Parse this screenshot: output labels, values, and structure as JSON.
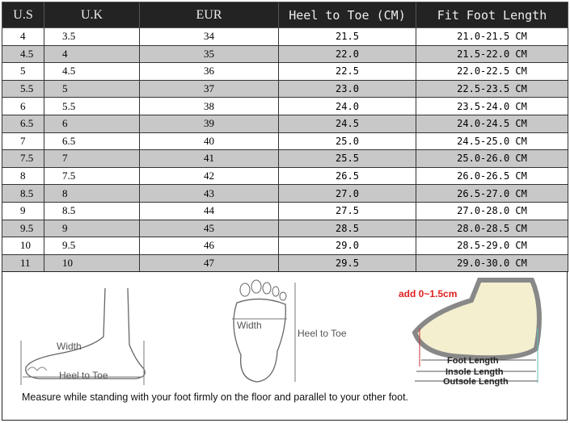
{
  "table": {
    "headers": [
      "U.S",
      "U.K",
      "EUR",
      "Heel to Toe (CM)",
      "Fit Foot Length"
    ],
    "rows": [
      [
        "4",
        "3.5",
        "34",
        "21.5",
        "21.0-21.5 CM"
      ],
      [
        "4.5",
        "4",
        "35",
        "22.0",
        "21.5-22.0 CM"
      ],
      [
        "5",
        "4.5",
        "36",
        "22.5",
        "22.0-22.5 CM"
      ],
      [
        "5.5",
        "5",
        "37",
        "23.0",
        "22.5-23.5 CM"
      ],
      [
        "6",
        "5.5",
        "38",
        "24.0",
        "23.5-24.0 CM"
      ],
      [
        "6.5",
        "6",
        "39",
        "24.5",
        "24.0-24.5 CM"
      ],
      [
        "7",
        "6.5",
        "40",
        "25.0",
        "24.5-25.0 CM"
      ],
      [
        "7.5",
        "7",
        "41",
        "25.5",
        "25.0-26.0 CM"
      ],
      [
        "8",
        "7.5",
        "42",
        "26.5",
        "26.0-26.5 CM"
      ],
      [
        "8.5",
        "8",
        "43",
        "27.0",
        "26.5-27.0 CM"
      ],
      [
        "9",
        "8.5",
        "44",
        "27.5",
        "27.0-28.0 CM"
      ],
      [
        "9.5",
        "9",
        "45",
        "28.5",
        "28.0-28.5 CM"
      ],
      [
        "10",
        "9.5",
        "46",
        "29.0",
        "28.5-29.0 CM"
      ],
      [
        "11",
        "10",
        "47",
        "29.5",
        "29.0-30.0 CM"
      ]
    ]
  },
  "diagram": {
    "side_width": "Width",
    "side_heel_to_toe": "Heel to Toe",
    "sole_width": "Width",
    "sole_heel_to_toe": "Heel to Toe",
    "shoe_add": "add 0~1.5cm",
    "foot_length": "Foot Length",
    "insole_length": "Insole Length",
    "outsole_length": "Outsole Length",
    "accent": "#e02020"
  },
  "note": "Measure while standing with your foot firmly on the floor and parallel to your other foot."
}
